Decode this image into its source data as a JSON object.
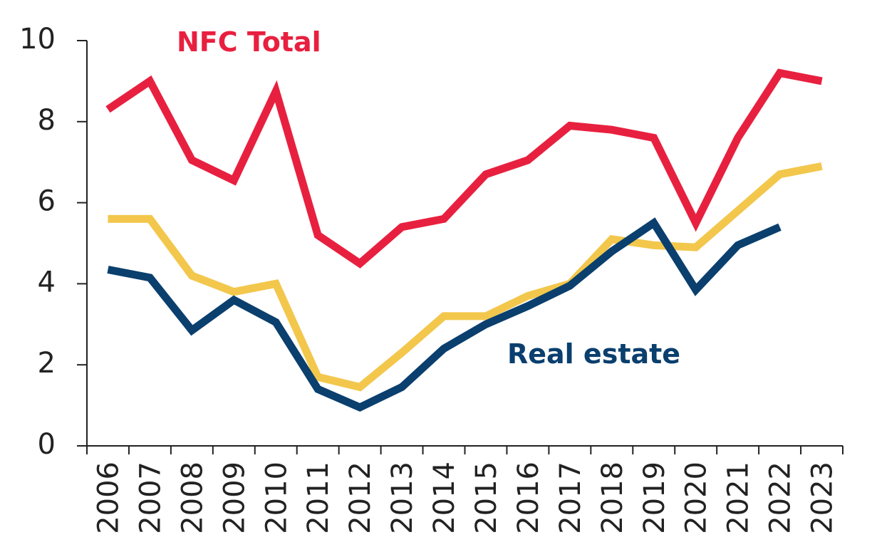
{
  "chart_data": {
    "type": "line",
    "x": [
      "2006",
      "2007",
      "2008",
      "2009",
      "2010",
      "2011",
      "2012",
      "2013",
      "2014",
      "2015",
      "2016",
      "2017",
      "2018",
      "2019",
      "2020",
      "2021",
      "2022",
      "2023"
    ],
    "ylim": [
      0,
      10
    ],
    "yticks": [
      "0",
      "2",
      "4",
      "6",
      "8",
      "10"
    ],
    "grid": false,
    "legend": "none",
    "series": [
      {
        "name": "NFC Total",
        "color": "#e8203f",
        "label_visible": true,
        "values": [
          8.3,
          9.0,
          7.05,
          6.55,
          8.75,
          5.2,
          4.5,
          5.4,
          5.6,
          6.7,
          7.05,
          7.9,
          7.8,
          7.6,
          5.5,
          7.6,
          9.2,
          9.0
        ]
      },
      {
        "name": "",
        "color": "#f2c74c",
        "label_visible": false,
        "values": [
          5.6,
          5.6,
          4.2,
          3.8,
          4.0,
          1.7,
          1.45,
          2.3,
          3.2,
          3.2,
          3.7,
          4.0,
          5.1,
          4.95,
          4.9,
          5.8,
          6.7,
          6.9
        ]
      },
      {
        "name": "Real estate",
        "color": "#0a3f6e",
        "label_visible": true,
        "values": [
          4.35,
          4.15,
          2.85,
          3.6,
          3.05,
          1.4,
          0.95,
          1.45,
          2.4,
          3.0,
          3.45,
          3.95,
          4.8,
          5.5,
          3.85,
          4.95,
          5.4,
          null
        ]
      }
    ]
  }
}
